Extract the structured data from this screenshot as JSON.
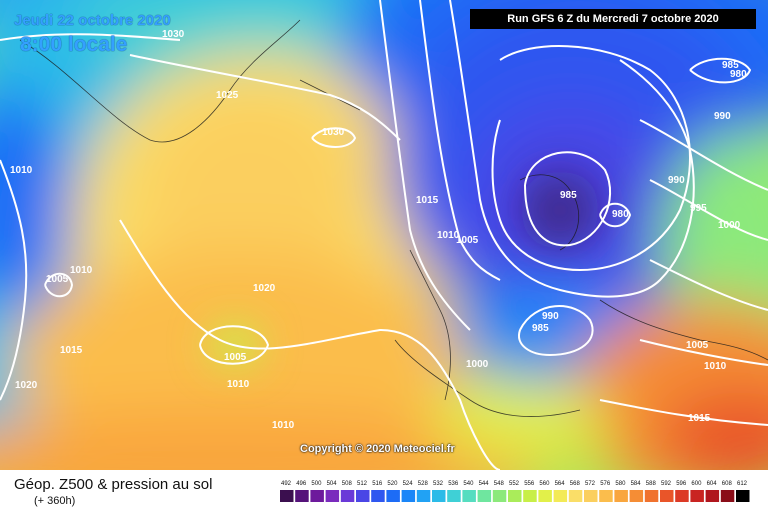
{
  "header": {
    "valid_date": "Jeudi 22 octobre 2020",
    "local_time": "8:00 locale",
    "run_info": "Run GFS 6 Z du Mercredi 7 octobre 2020"
  },
  "copyright": "Copyright © 2020 Meteociel.fr",
  "footer": {
    "product": "Géop. Z500 & pression au sol",
    "lead_time": "(+ 360h)"
  },
  "legend": {
    "ticks": [
      "492",
      "496",
      "500",
      "504",
      "508",
      "512",
      "516",
      "520",
      "524",
      "528",
      "532",
      "536",
      "540",
      "544",
      "548",
      "552",
      "556",
      "560",
      "564",
      "568",
      "572",
      "576",
      "580",
      "584",
      "588",
      "592",
      "596",
      "600",
      "604",
      "608",
      "612"
    ],
    "colors": [
      "#3b0f4f",
      "#55137a",
      "#6d1a9c",
      "#7a2bbd",
      "#6a39d8",
      "#4a46e6",
      "#2f57f0",
      "#1d6cf6",
      "#1a86f8",
      "#21a2f4",
      "#2bbbe8",
      "#3fd0d6",
      "#56ddc0",
      "#6fe69f",
      "#8ce97b",
      "#aaec5a",
      "#c8ef48",
      "#e2f04a",
      "#f3ea57",
      "#fade68",
      "#fbcf5e",
      "#fbbd4c",
      "#f9a63e",
      "#f58d35",
      "#f0722e",
      "#e95529",
      "#dc3a26",
      "#c92421",
      "#b0161d",
      "#8a0d18",
      "#000000"
    ]
  },
  "isobar_labels": [
    "1030",
    "1025",
    "1030",
    "1010",
    "1015",
    "1010",
    "1005",
    "985",
    "980",
    "985",
    "980",
    "990",
    "990",
    "995",
    "1000",
    "1010",
    "1005",
    "1020",
    "1015",
    "1020",
    "1005",
    "1010",
    "1010",
    "990",
    "985",
    "1000",
    "1005",
    "1010",
    "1015"
  ]
}
